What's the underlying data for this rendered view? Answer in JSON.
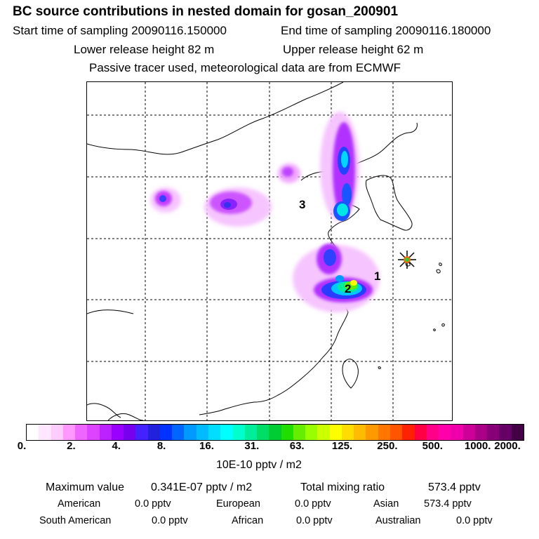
{
  "header": {
    "title": "BC  source contributions in nested domain for gosan_200901",
    "start_sampling": "Start time of sampling 20090116.150000",
    "end_sampling": "End time of sampling 20090116.180000",
    "lower_release": "Lower release height   82 m",
    "upper_release": "Upper release height   62 m",
    "tracer_note": "Passive tracer used, meteorological data are from ECMWF"
  },
  "map": {
    "region_labels": [
      "1",
      "2",
      "3"
    ],
    "receptor_marker": "gosan-receptor-star"
  },
  "colorbar": {
    "tick_labels": [
      "0.",
      "2.",
      "4.",
      "8.",
      "16.",
      "31.",
      "63.",
      "125.",
      "250.",
      "500.",
      "1000.",
      "2000."
    ],
    "units": "10E-10 pptv / m2",
    "colors": [
      "#ffffff",
      "#ffe8ff",
      "#ffccff",
      "#ff99ff",
      "#ee66ff",
      "#dd44ff",
      "#bb22ff",
      "#9900ff",
      "#7700ee",
      "#4422ff",
      "#2222dd",
      "#0033ff",
      "#0066ff",
      "#0099ff",
      "#00bbff",
      "#00ddff",
      "#00ffff",
      "#00ffcc",
      "#00ee99",
      "#00dd66",
      "#00cc33",
      "#22dd00",
      "#66ee00",
      "#99ff00",
      "#ccff00",
      "#ffff00",
      "#ffdd00",
      "#ffbb00",
      "#ff9900",
      "#ff7700",
      "#ff5500",
      "#ff2200",
      "#ff0044",
      "#ff0088",
      "#ff00aa",
      "#ee00aa",
      "#cc0099",
      "#aa0088",
      "#880077",
      "#660066",
      "#440044"
    ]
  },
  "summary": {
    "max_label": "Maximum value",
    "max_value": "0.341E-07 pptv / m2",
    "total_label": "Total mixing ratio",
    "total_value": "573.4 pptv",
    "american_label": "American",
    "american_value": "0.0 pptv",
    "european_label": "European",
    "european_value": "0.0 pptv",
    "asian_label": "Asian",
    "asian_value": "573.4 pptv",
    "south_american_label": "South American",
    "south_american_value": "0.0 pptv",
    "african_label": "African",
    "african_value": "0.0 pptv",
    "australian_label": "Australian",
    "australian_value": "0.0 pptv"
  }
}
